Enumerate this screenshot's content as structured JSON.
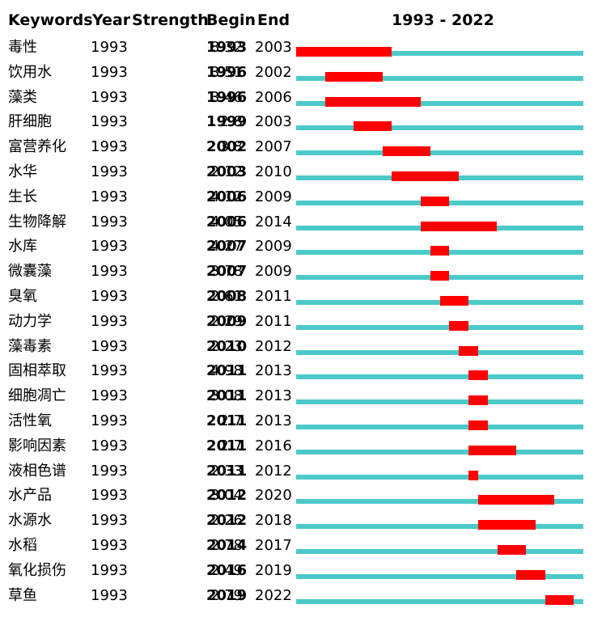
{
  "headers": {
    "keywords": "Keywords",
    "year": "Year",
    "strength": "Strength",
    "begin": "Begin",
    "end": "End",
    "range": "1993 - 2022"
  },
  "colors": {
    "baseline": "#4cc9c9",
    "burst": "#ff0000"
  },
  "chart_data": {
    "type": "table",
    "timeline": {
      "start": 1993,
      "end": 2022
    },
    "rows": [
      {
        "keyword": "毒性",
        "year": "1993",
        "strength": "8.32",
        "begin": "1993",
        "end": "2003"
      },
      {
        "keyword": "饮用水",
        "year": "1993",
        "strength": "3.51",
        "begin": "1996",
        "end": "2002"
      },
      {
        "keyword": "藻类",
        "year": "1993",
        "strength": "3.46",
        "begin": "1996",
        "end": "2006"
      },
      {
        "keyword": "肝细胞",
        "year": "1993",
        "strength": "2.8",
        "begin": "1999",
        "end": "2003"
      },
      {
        "keyword": "富营养化",
        "year": "1993",
        "strength": "3.8",
        "begin": "2002",
        "end": "2007"
      },
      {
        "keyword": "水华",
        "year": "1993",
        "strength": "2.12",
        "begin": "2003",
        "end": "2010"
      },
      {
        "keyword": "生长",
        "year": "1993",
        "strength": "4.12",
        "begin": "2006",
        "end": "2009"
      },
      {
        "keyword": "生物降解",
        "year": "1993",
        "strength": "4.05",
        "begin": "2006",
        "end": "2014"
      },
      {
        "keyword": "水库",
        "year": "1993",
        "strength": "4.27",
        "begin": "2007",
        "end": "2009"
      },
      {
        "keyword": "微囊藻",
        "year": "1993",
        "strength": "3.78",
        "begin": "2007",
        "end": "2009"
      },
      {
        "keyword": "臭氧",
        "year": "1993",
        "strength": "2.61",
        "begin": "2008",
        "end": "2011"
      },
      {
        "keyword": "动力学",
        "year": "1993",
        "strength": "2.29",
        "begin": "2009",
        "end": "2011"
      },
      {
        "keyword": "藻毒素",
        "year": "1993",
        "strength": "2.23",
        "begin": "2010",
        "end": "2012"
      },
      {
        "keyword": "固相萃取",
        "year": "1993",
        "strength": "4.98",
        "begin": "2011",
        "end": "2013"
      },
      {
        "keyword": "细胞凋亡",
        "year": "1993",
        "strength": "3.08",
        "begin": "2011",
        "end": "2013"
      },
      {
        "keyword": "活性氧",
        "year": "1993",
        "strength": "2.7",
        "begin": "2011",
        "end": "2013"
      },
      {
        "keyword": "影响因素",
        "year": "1993",
        "strength": "2.7",
        "begin": "2011",
        "end": "2016"
      },
      {
        "keyword": "液相色谱",
        "year": "1993",
        "strength": "2.33",
        "begin": "2011",
        "end": "2012"
      },
      {
        "keyword": "水产品",
        "year": "1993",
        "strength": "3.04",
        "begin": "2012",
        "end": "2020"
      },
      {
        "keyword": "水源水",
        "year": "1993",
        "strength": "2.26",
        "begin": "2012",
        "end": "2018"
      },
      {
        "keyword": "水稻",
        "year": "1993",
        "strength": "2.78",
        "begin": "2014",
        "end": "2017"
      },
      {
        "keyword": "氧化损伤",
        "year": "1993",
        "strength": "2.49",
        "begin": "2016",
        "end": "2019"
      },
      {
        "keyword": "草鱼",
        "year": "1993",
        "strength": "2.79",
        "begin": "2019",
        "end": "2022"
      }
    ]
  }
}
